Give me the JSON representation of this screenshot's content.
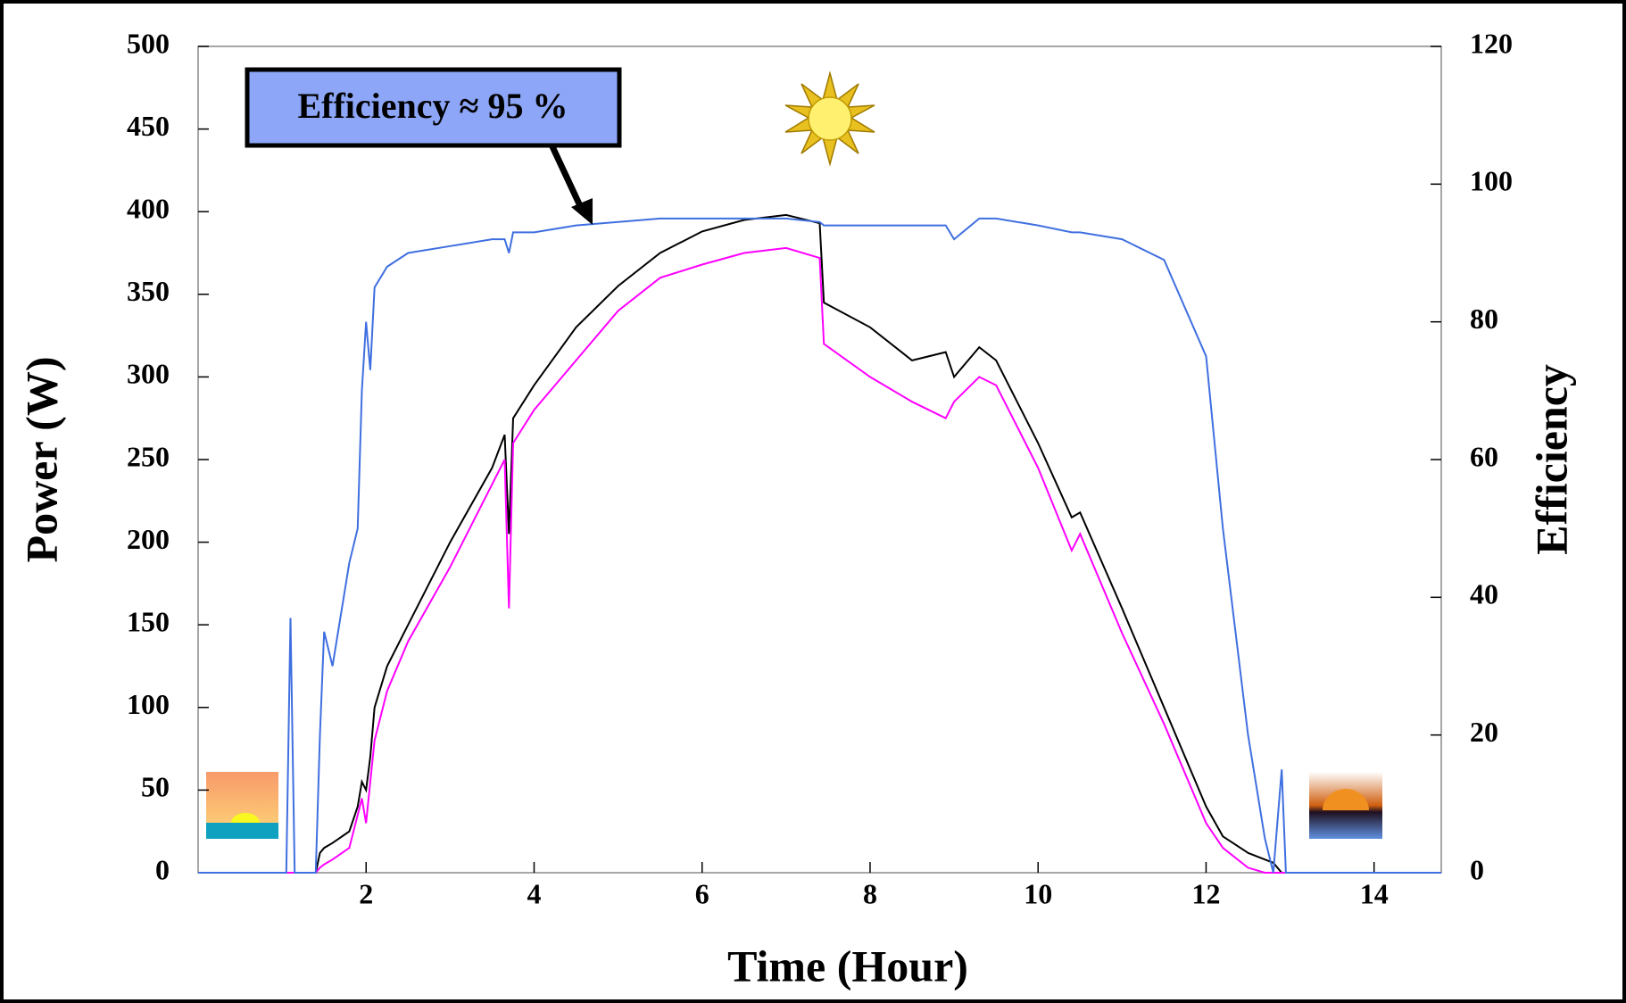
{
  "chart_data": {
    "type": "line",
    "xlabel": "Time (Hour)",
    "ylabel": "Power (W)",
    "y2label": "Efficiency",
    "annotation": "Efficiency ≈ 95 %",
    "x": [
      0,
      1,
      1.05,
      1.1,
      1.15,
      1.4,
      1.45,
      1.5,
      1.6,
      1.8,
      1.9,
      1.95,
      2,
      2.05,
      2.1,
      2.25,
      2.5,
      3,
      3.5,
      3.65,
      3.7,
      3.75,
      4,
      4.5,
      5,
      5.5,
      6,
      6.5,
      7,
      7.4,
      7.45,
      8,
      8.5,
      8.9,
      9,
      9.3,
      9.5,
      10,
      10.4,
      10.5,
      11,
      11.5,
      12,
      12.2,
      12.5,
      12.7,
      12.8,
      12.9,
      12.95,
      13,
      14,
      14.8
    ],
    "series": [
      {
        "color": "#000000",
        "values": [
          0,
          0,
          0,
          0,
          0,
          0,
          12,
          15,
          18,
          25,
          40,
          55,
          50,
          70,
          100,
          125,
          150,
          200,
          245,
          265,
          205,
          275,
          295,
          330,
          355,
          375,
          388,
          395,
          398,
          393,
          345,
          330,
          310,
          315,
          300,
          318,
          310,
          260,
          215,
          218,
          160,
          100,
          40,
          22,
          12,
          8,
          6,
          0,
          0,
          0,
          0,
          0
        ]
      },
      {
        "color": "#ff00ff",
        "values": [
          0,
          0,
          0,
          0,
          0,
          0,
          3,
          5,
          8,
          15,
          35,
          45,
          30,
          55,
          80,
          110,
          140,
          185,
          235,
          250,
          160,
          260,
          280,
          310,
          340,
          360,
          368,
          375,
          378,
          372,
          320,
          300,
          285,
          275,
          285,
          300,
          295,
          245,
          195,
          205,
          145,
          90,
          30,
          15,
          3,
          0,
          0,
          0,
          0,
          0,
          0,
          0
        ]
      },
      {
        "color": "#3f6fe0",
        "axis": "y2",
        "values": [
          0,
          0,
          0,
          37,
          0,
          0,
          20,
          35,
          30,
          45,
          50,
          70,
          80,
          73,
          85,
          88,
          90,
          91,
          92,
          92,
          90,
          93,
          93,
          94,
          94.5,
          95,
          95,
          95,
          95,
          94.5,
          94,
          94,
          94,
          94,
          92,
          95,
          95,
          94,
          93,
          93,
          92,
          89,
          75,
          50,
          20,
          5,
          0,
          15,
          0,
          0,
          0,
          0
        ]
      }
    ],
    "xlim": [
      0,
      14.8
    ],
    "xticks": [
      2,
      4,
      6,
      8,
      10,
      12,
      14
    ],
    "ylim": [
      0,
      500
    ],
    "yticks": [
      0,
      50,
      100,
      150,
      200,
      250,
      300,
      350,
      400,
      450,
      500
    ],
    "y2lim": [
      0,
      120
    ],
    "y2ticks": [
      0,
      20,
      40,
      60,
      80,
      100,
      120
    ]
  }
}
